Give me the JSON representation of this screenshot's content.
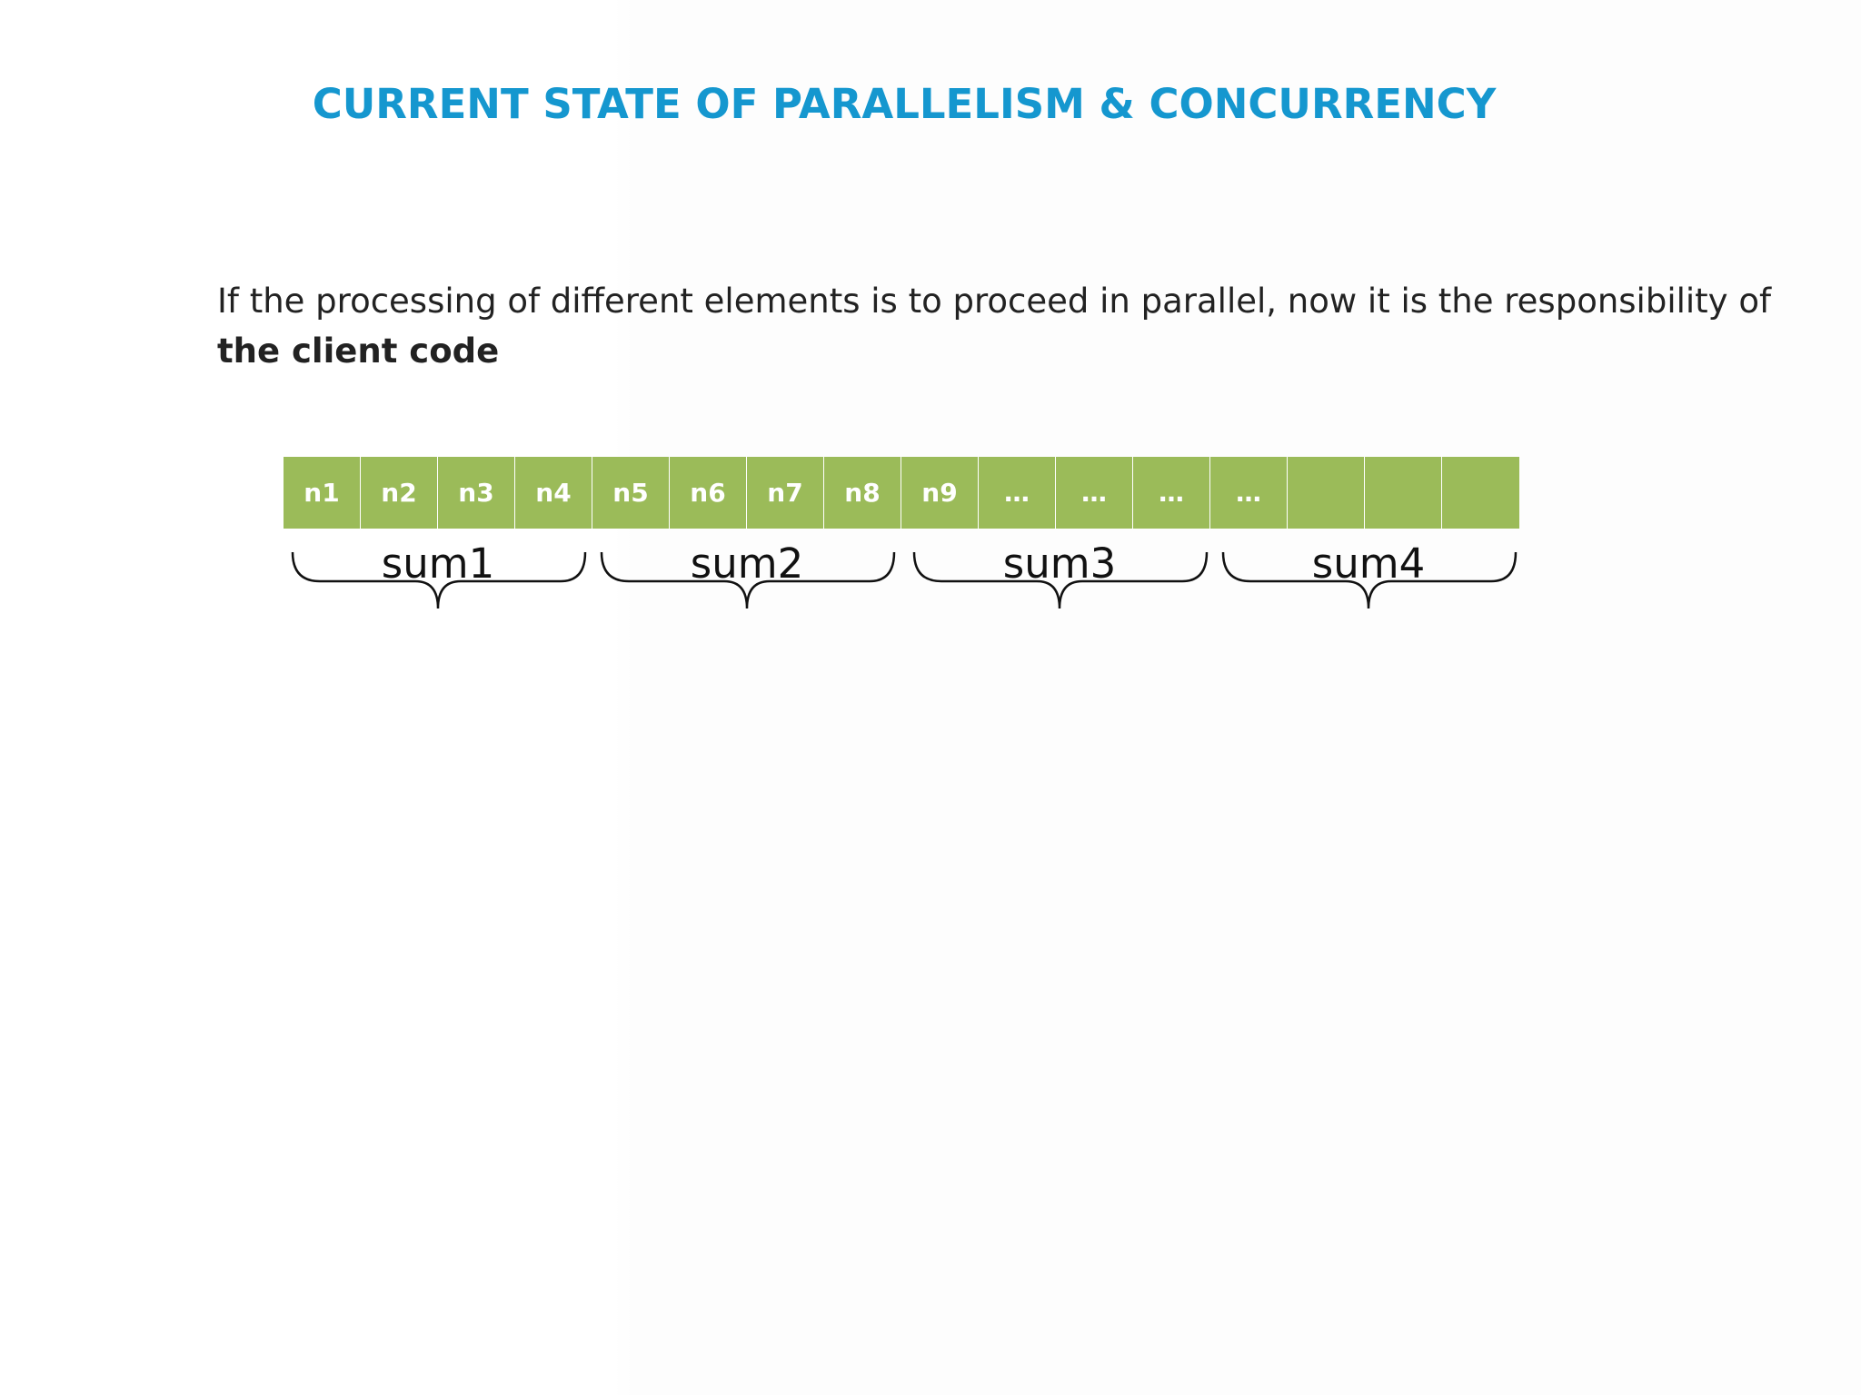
{
  "slide": {
    "title": "CURRENT STATE OF PARALLELISM & CONCURRENCY",
    "body_text_regular": "If the processing of different elements is to proceed in parallel, now it is the responsibility of ",
    "body_text_bold": "the client code"
  },
  "diagram": {
    "cell_color": "#9bbb59",
    "title_color": "#1597cf",
    "cells": [
      {
        "label": "n1"
      },
      {
        "label": "n2"
      },
      {
        "label": "n3"
      },
      {
        "label": "n4"
      },
      {
        "label": "n5"
      },
      {
        "label": "n6"
      },
      {
        "label": "n7"
      },
      {
        "label": "n8"
      },
      {
        "label": "n9"
      },
      {
        "label": "…"
      },
      {
        "label": "…"
      },
      {
        "label": "…"
      },
      {
        "label": "…"
      },
      {
        "label": ""
      },
      {
        "label": ""
      },
      {
        "label": ""
      }
    ],
    "groups": [
      {
        "label": "sum1"
      },
      {
        "label": "sum2"
      },
      {
        "label": "sum3"
      },
      {
        "label": "sum4"
      }
    ]
  }
}
